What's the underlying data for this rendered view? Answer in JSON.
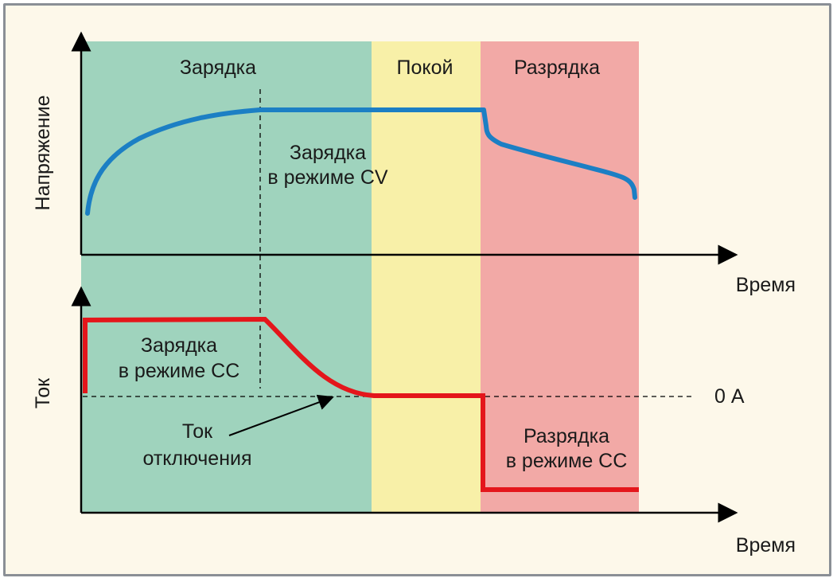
{
  "colors": {
    "charge_zone": "#9fd3bd",
    "rest_zone": "#f8f0a8",
    "discharge_zone": "#f2a9a6",
    "voltage_line": "#1c7fc4",
    "current_line": "#e4161b",
    "frame_bg": "#fdf8ea"
  },
  "zones": {
    "charge": "Зарядка",
    "rest": "Покой",
    "discharge": "Разрядка"
  },
  "axes": {
    "voltage_ylabel": "Напряжение",
    "current_ylabel": "Ток",
    "time_label_top": "Время",
    "time_label_bottom": "Время"
  },
  "annotations": {
    "cv_line1": "Зарядка",
    "cv_line2": "в режиме CV",
    "cc_charge_line1": "Зарядка",
    "cc_charge_line2": "в режиме CC",
    "cutoff_line1": "Ток",
    "cutoff_line2": "отключения",
    "cc_discharge_line1": "Разрядка",
    "cc_discharge_line2": "в режиме CC",
    "zero_current": "0 А"
  }
}
